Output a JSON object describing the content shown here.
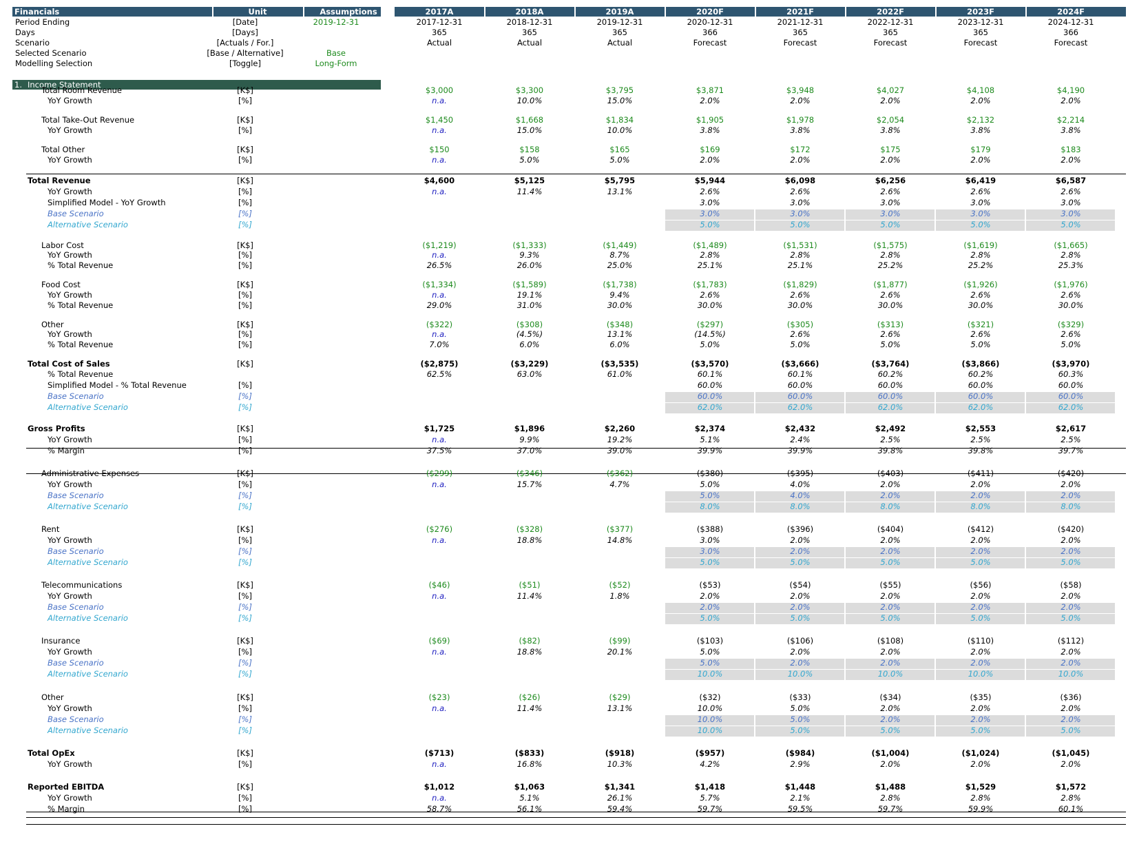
{
  "header": {
    "title": "Financials",
    "unit": "Unit",
    "assumptions": "Assumptions",
    "years": [
      "2017A",
      "2018A",
      "2019A",
      "2020F",
      "2021F",
      "2022F",
      "2023F",
      "2024F"
    ]
  },
  "meta_rows": [
    {
      "label": "Period Ending",
      "unit": "[Date]",
      "assumption": "2019-12-31",
      "values": [
        "2017-12-31",
        "2018-12-31",
        "2019-12-31",
        "2020-12-31",
        "2021-12-31",
        "2022-12-31",
        "2023-12-31",
        "2024-12-31"
      ]
    },
    {
      "label": "Days",
      "unit": "[Days]",
      "assumption": "",
      "values": [
        "365",
        "365",
        "365",
        "366",
        "365",
        "365",
        "365",
        "366"
      ]
    },
    {
      "label": "Scenario",
      "unit": "[Actuals / For.]",
      "assumption": "",
      "values": [
        "Actual",
        "Actual",
        "Actual",
        "Forecast",
        "Forecast",
        "Forecast",
        "Forecast",
        "Forecast"
      ]
    },
    {
      "label": "Selected Scenario",
      "unit": "[Base / Alternative]",
      "assumption": "Base",
      "values": []
    },
    {
      "label": "Modelling Selection",
      "unit": "[Toggle]",
      "assumption": "Long-Form",
      "values": []
    }
  ],
  "section": {
    "number": "1.",
    "title": "Income Statement"
  },
  "rows": [
    {
      "y": 131,
      "label": "Total Room Revenue",
      "indent": 1,
      "unit": "[K$]",
      "style": "green",
      "values": [
        "$3,000",
        "$3,300",
        "$3,795",
        "$3,871",
        "$3,948",
        "$4,027",
        "$4,108",
        "$4,190"
      ]
    },
    {
      "y": 146,
      "label": "YoY Growth",
      "indent": 2,
      "unit": "[%]",
      "style": "pct",
      "values": [
        "n.a.",
        "10.0%",
        "15.0%",
        "2.0%",
        "2.0%",
        "2.0%",
        "2.0%",
        "2.0%"
      ]
    },
    {
      "y": 174,
      "label": "Total Take-Out Revenue",
      "indent": 1,
      "unit": "[K$]",
      "style": "green",
      "values": [
        "$1,450",
        "$1,668",
        "$1,834",
        "$1,905",
        "$1,978",
        "$2,054",
        "$2,132",
        "$2,214"
      ]
    },
    {
      "y": 189,
      "label": "YoY Growth",
      "indent": 2,
      "unit": "[%]",
      "style": "pct",
      "values": [
        "n.a.",
        "15.0%",
        "10.0%",
        "3.8%",
        "3.8%",
        "3.8%",
        "3.8%",
        "3.8%"
      ]
    },
    {
      "y": 217,
      "label": "Total Other",
      "indent": 1,
      "unit": "[K$]",
      "style": "green",
      "values": [
        "$150",
        "$158",
        "$165",
        "$169",
        "$172",
        "$175",
        "$179",
        "$183"
      ]
    },
    {
      "y": 232,
      "label": "YoY Growth",
      "indent": 2,
      "unit": "[%]",
      "style": "pct",
      "values": [
        "n.a.",
        "5.0%",
        "5.0%",
        "2.0%",
        "2.0%",
        "2.0%",
        "2.0%",
        "2.0%"
      ]
    },
    {
      "y": 262,
      "label": "Total Revenue",
      "indent": 0,
      "unit": "[K$]",
      "style": "bold",
      "values": [
        "$4,600",
        "$5,125",
        "$5,795",
        "$5,944",
        "$6,098",
        "$6,256",
        "$6,419",
        "$6,587"
      ]
    },
    {
      "y": 278,
      "label": "YoY Growth",
      "indent": 2,
      "unit": "[%]",
      "style": "pct",
      "values": [
        "n.a.",
        "11.4%",
        "13.1%",
        "2.6%",
        "2.6%",
        "2.6%",
        "2.6%",
        "2.6%"
      ]
    },
    {
      "y": 294,
      "label": "Simplified Model - YoY Growth",
      "indent": 2,
      "unit": "[%]",
      "style": "pct",
      "values": [
        "",
        "",
        "",
        "3.0%",
        "3.0%",
        "3.0%",
        "3.0%",
        "3.0%"
      ]
    },
    {
      "y": 310,
      "label": "Base Scenario",
      "indent": 2,
      "unit": "[%]",
      "style": "base",
      "shade": true,
      "values": [
        "",
        "",
        "",
        "3.0%",
        "3.0%",
        "3.0%",
        "3.0%",
        "3.0%"
      ]
    },
    {
      "y": 326,
      "label": "Alternative Scenario",
      "indent": 2,
      "unit": "[%]",
      "style": "alt",
      "shade": true,
      "values": [
        "",
        "",
        "",
        "5.0%",
        "5.0%",
        "5.0%",
        "5.0%",
        "5.0%"
      ]
    },
    {
      "y": 356,
      "label": "Labor Cost",
      "indent": 1,
      "unit": "[K$]",
      "style": "green",
      "values": [
        "($1,219)",
        "($1,333)",
        "($1,449)",
        "($1,489)",
        "($1,531)",
        "($1,575)",
        "($1,619)",
        "($1,665)"
      ]
    },
    {
      "y": 370,
      "label": "YoY Growth",
      "indent": 2,
      "unit": "[%]",
      "style": "pct",
      "values": [
        "n.a.",
        "9.3%",
        "8.7%",
        "2.8%",
        "2.8%",
        "2.8%",
        "2.8%",
        "2.8%"
      ]
    },
    {
      "y": 385,
      "label": "% Total Revenue",
      "indent": 2,
      "unit": "[%]",
      "style": "pct",
      "values": [
        "26.5%",
        "26.0%",
        "25.0%",
        "25.1%",
        "25.1%",
        "25.2%",
        "25.2%",
        "25.3%"
      ]
    },
    {
      "y": 413,
      "label": "Food Cost",
      "indent": 1,
      "unit": "[K$]",
      "style": "green",
      "values": [
        "($1,334)",
        "($1,589)",
        "($1,738)",
        "($1,783)",
        "($1,829)",
        "($1,877)",
        "($1,926)",
        "($1,976)"
      ]
    },
    {
      "y": 428,
      "label": "YoY Growth",
      "indent": 2,
      "unit": "[%]",
      "style": "pct",
      "values": [
        "n.a.",
        "19.1%",
        "9.4%",
        "2.6%",
        "2.6%",
        "2.6%",
        "2.6%",
        "2.6%"
      ]
    },
    {
      "y": 443,
      "label": "% Total Revenue",
      "indent": 2,
      "unit": "[%]",
      "style": "pct",
      "values": [
        "29.0%",
        "31.0%",
        "30.0%",
        "30.0%",
        "30.0%",
        "30.0%",
        "30.0%",
        "30.0%"
      ]
    },
    {
      "y": 471,
      "label": "Other",
      "indent": 1,
      "unit": "[K$]",
      "style": "green",
      "values": [
        "($322)",
        "($308)",
        "($348)",
        "($297)",
        "($305)",
        "($313)",
        "($321)",
        "($329)"
      ]
    },
    {
      "y": 485,
      "label": "YoY Growth",
      "indent": 2,
      "unit": "[%]",
      "style": "pct",
      "values": [
        "n.a.",
        "(4.5%)",
        "13.1%",
        "(14.5%)",
        "2.6%",
        "2.6%",
        "2.6%",
        "2.6%"
      ]
    },
    {
      "y": 500,
      "label": "% Total Revenue",
      "indent": 2,
      "unit": "[%]",
      "style": "pct",
      "values": [
        "7.0%",
        "6.0%",
        "6.0%",
        "5.0%",
        "5.0%",
        "5.0%",
        "5.0%",
        "5.0%"
      ]
    },
    {
      "y": 528,
      "label": "Total Cost of Sales",
      "indent": 0,
      "unit": "[K$]",
      "style": "bold",
      "values": [
        "($2,875)",
        "($3,229)",
        "($3,535)",
        "($3,570)",
        "($3,666)",
        "($3,764)",
        "($3,866)",
        "($3,970)"
      ]
    },
    {
      "y": 543,
      "label": "% Total Revenue",
      "indent": 2,
      "unit": "",
      "style": "pct",
      "values": [
        "62.5%",
        "63.0%",
        "61.0%",
        "60.1%",
        "60.1%",
        "60.2%",
        "60.2%",
        "60.3%"
      ]
    },
    {
      "y": 559,
      "label": "Simplified Model - % Total Revenue",
      "indent": 2,
      "unit": "[%]",
      "style": "pct",
      "values": [
        "",
        "",
        "",
        "60.0%",
        "60.0%",
        "60.0%",
        "60.0%",
        "60.0%"
      ]
    },
    {
      "y": 575,
      "label": "Base Scenario",
      "indent": 2,
      "unit": "[%]",
      "style": "base",
      "shade": true,
      "values": [
        "",
        "",
        "",
        "60.0%",
        "60.0%",
        "60.0%",
        "60.0%",
        "60.0%"
      ]
    },
    {
      "y": 591,
      "label": "Alternative Scenario",
      "indent": 2,
      "unit": "[%]",
      "style": "alt",
      "shade": true,
      "values": [
        "",
        "",
        "",
        "62.0%",
        "62.0%",
        "62.0%",
        "62.0%",
        "62.0%"
      ]
    },
    {
      "y": 622,
      "label": "Gross Profits",
      "indent": 0,
      "unit": "[K$]",
      "style": "bold",
      "values": [
        "$1,725",
        "$1,896",
        "$2,260",
        "$2,374",
        "$2,432",
        "$2,492",
        "$2,553",
        "$2,617"
      ]
    },
    {
      "y": 638,
      "label": "YoY Growth",
      "indent": 2,
      "unit": "[%]",
      "style": "pct",
      "values": [
        "n.a.",
        "9.9%",
        "19.2%",
        "5.1%",
        "2.4%",
        "2.5%",
        "2.5%",
        "2.5%"
      ]
    },
    {
      "y": 654,
      "label": "% Margin",
      "indent": 2,
      "unit": "[%]",
      "style": "pct",
      "values": [
        "37.5%",
        "37.0%",
        "39.0%",
        "39.9%",
        "39.9%",
        "39.8%",
        "39.8%",
        "39.7%"
      ]
    },
    {
      "y": 687,
      "label": "Administrative Expenses",
      "indent": 1,
      "unit": "[K$]",
      "style": "mixed",
      "values": [
        "($299)",
        "($346)",
        "($362)",
        "($380)",
        "($395)",
        "($403)",
        "($411)",
        "($420)"
      ]
    },
    {
      "y": 703,
      "label": "YoY Growth",
      "indent": 2,
      "unit": "[%]",
      "style": "pct",
      "values": [
        "n.a.",
        "15.7%",
        "4.7%",
        "5.0%",
        "4.0%",
        "2.0%",
        "2.0%",
        "2.0%"
      ]
    },
    {
      "y": 719,
      "label": "Base Scenario",
      "indent": 2,
      "unit": "[%]",
      "style": "base",
      "shade": true,
      "values": [
        "",
        "",
        "",
        "5.0%",
        "4.0%",
        "2.0%",
        "2.0%",
        "2.0%"
      ]
    },
    {
      "y": 735,
      "label": "Alternative Scenario",
      "indent": 2,
      "unit": "[%]",
      "style": "alt",
      "shade": true,
      "values": [
        "",
        "",
        "",
        "8.0%",
        "8.0%",
        "8.0%",
        "8.0%",
        "8.0%"
      ]
    },
    {
      "y": 768,
      "label": "Rent",
      "indent": 1,
      "unit": "[K$]",
      "style": "mixed",
      "values": [
        "($276)",
        "($328)",
        "($377)",
        "($388)",
        "($396)",
        "($404)",
        "($412)",
        "($420)"
      ]
    },
    {
      "y": 784,
      "label": "YoY Growth",
      "indent": 2,
      "unit": "[%]",
      "style": "pct",
      "values": [
        "n.a.",
        "18.8%",
        "14.8%",
        "3.0%",
        "2.0%",
        "2.0%",
        "2.0%",
        "2.0%"
      ]
    },
    {
      "y": 800,
      "label": "Base Scenario",
      "indent": 2,
      "unit": "[%]",
      "style": "base",
      "shade": true,
      "values": [
        "",
        "",
        "",
        "3.0%",
        "2.0%",
        "2.0%",
        "2.0%",
        "2.0%"
      ]
    },
    {
      "y": 816,
      "label": "Alternative Scenario",
      "indent": 2,
      "unit": "[%]",
      "style": "alt",
      "shade": true,
      "values": [
        "",
        "",
        "",
        "5.0%",
        "5.0%",
        "5.0%",
        "5.0%",
        "5.0%"
      ]
    },
    {
      "y": 849,
      "label": "Telecommunications",
      "indent": 1,
      "unit": "[K$]",
      "style": "mixed",
      "values": [
        "($46)",
        "($51)",
        "($52)",
        "($53)",
        "($54)",
        "($55)",
        "($56)",
        "($58)"
      ]
    },
    {
      "y": 865,
      "label": "YoY Growth",
      "indent": 2,
      "unit": "[%]",
      "style": "pct",
      "values": [
        "n.a.",
        "11.4%",
        "1.8%",
        "2.0%",
        "2.0%",
        "2.0%",
        "2.0%",
        "2.0%"
      ]
    },
    {
      "y": 881,
      "label": "Base Scenario",
      "indent": 2,
      "unit": "[%]",
      "style": "base",
      "shade": true,
      "values": [
        "",
        "",
        "",
        "2.0%",
        "2.0%",
        "2.0%",
        "2.0%",
        "2.0%"
      ]
    },
    {
      "y": 897,
      "label": "Alternative Scenario",
      "indent": 2,
      "unit": "[%]",
      "style": "alt",
      "shade": true,
      "values": [
        "",
        "",
        "",
        "5.0%",
        "5.0%",
        "5.0%",
        "5.0%",
        "5.0%"
      ]
    },
    {
      "y": 930,
      "label": "Insurance",
      "indent": 1,
      "unit": "[K$]",
      "style": "mixed",
      "values": [
        "($69)",
        "($82)",
        "($99)",
        "($103)",
        "($106)",
        "($108)",
        "($110)",
        "($112)"
      ]
    },
    {
      "y": 946,
      "label": "YoY Growth",
      "indent": 2,
      "unit": "[%]",
      "style": "pct",
      "values": [
        "n.a.",
        "18.8%",
        "20.1%",
        "5.0%",
        "2.0%",
        "2.0%",
        "2.0%",
        "2.0%"
      ]
    },
    {
      "y": 962,
      "label": "Base Scenario",
      "indent": 2,
      "unit": "[%]",
      "style": "base",
      "shade": true,
      "values": [
        "",
        "",
        "",
        "5.0%",
        "2.0%",
        "2.0%",
        "2.0%",
        "2.0%"
      ]
    },
    {
      "y": 978,
      "label": "Alternative Scenario",
      "indent": 2,
      "unit": "[%]",
      "style": "alt",
      "shade": true,
      "values": [
        "",
        "",
        "",
        "10.0%",
        "10.0%",
        "10.0%",
        "10.0%",
        "10.0%"
      ]
    },
    {
      "y": 1012,
      "label": "Other",
      "indent": 1,
      "unit": "[K$]",
      "style": "mixed",
      "values": [
        "($23)",
        "($26)",
        "($29)",
        "($32)",
        "($33)",
        "($34)",
        "($35)",
        "($36)"
      ]
    },
    {
      "y": 1028,
      "label": "YoY Growth",
      "indent": 2,
      "unit": "[%]",
      "style": "pct",
      "values": [
        "n.a.",
        "11.4%",
        "13.1%",
        "10.0%",
        "5.0%",
        "2.0%",
        "2.0%",
        "2.0%"
      ]
    },
    {
      "y": 1044,
      "label": "Base Scenario",
      "indent": 2,
      "unit": "[%]",
      "style": "base",
      "shade": true,
      "values": [
        "",
        "",
        "",
        "10.0%",
        "5.0%",
        "2.0%",
        "2.0%",
        "2.0%"
      ]
    },
    {
      "y": 1060,
      "label": "Alternative Scenario",
      "indent": 2,
      "unit": "[%]",
      "style": "alt",
      "shade": true,
      "values": [
        "",
        "",
        "",
        "10.0%",
        "5.0%",
        "5.0%",
        "5.0%",
        "5.0%"
      ]
    },
    {
      "y": 1093,
      "label": "Total OpEx",
      "indent": 0,
      "unit": "[K$]",
      "style": "bold",
      "values": [
        "($713)",
        "($833)",
        "($918)",
        "($957)",
        "($984)",
        "($1,004)",
        "($1,024)",
        "($1,045)"
      ]
    },
    {
      "y": 1109,
      "label": "YoY Growth",
      "indent": 2,
      "unit": "[%]",
      "style": "pct",
      "values": [
        "n.a.",
        "16.8%",
        "10.3%",
        "4.2%",
        "2.9%",
        "2.0%",
        "2.0%",
        "2.0%"
      ]
    },
    {
      "y": 1142,
      "label": "Reported EBITDA",
      "indent": 0,
      "unit": "[K$]",
      "style": "bold",
      "values": [
        "$1,012",
        "$1,063",
        "$1,341",
        "$1,418",
        "$1,448",
        "$1,488",
        "$1,529",
        "$1,572"
      ]
    },
    {
      "y": 1158,
      "label": "YoY Growth",
      "indent": 2,
      "unit": "[%]",
      "style": "pct",
      "values": [
        "n.a.",
        "5.1%",
        "26.1%",
        "5.7%",
        "2.1%",
        "2.8%",
        "2.8%",
        "2.8%"
      ]
    },
    {
      "y": 1174,
      "label": "% Margin",
      "indent": 2,
      "unit": "[%]",
      "style": "pct",
      "values": [
        "58.7%",
        "56.1%",
        "59.4%",
        "59.7%",
        "59.5%",
        "59.7%",
        "59.9%",
        "60.1%"
      ]
    }
  ],
  "colors": {
    "header": "#2e5570",
    "section": "#2e5b4c",
    "input_green": "#1d8a1d",
    "na_blue": "#1c1cbf",
    "base_scenario": "#4a73c6",
    "alt_scenario": "#33a7cf",
    "shade": "#dcdcdc"
  }
}
